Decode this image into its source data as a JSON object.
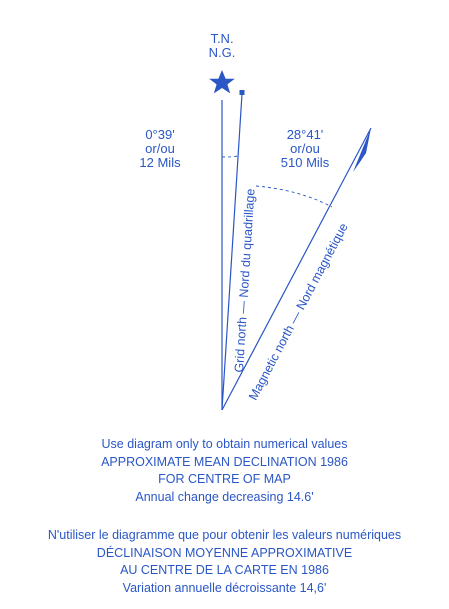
{
  "north_marker": {
    "line1": "T.N.",
    "line2": "N.G."
  },
  "angle_grid": {
    "deg": "0°39'",
    "oru": "or/ou",
    "mils": "12 Mils"
  },
  "angle_magnetic": {
    "deg": "28°41'",
    "oru": "or/ou",
    "mils": "510 Mils"
  },
  "grid_north_label": "Grid north — Nord du quadrillage",
  "magnetic_north_label": "Magnetic north — Nord magnétique",
  "english": {
    "line1": "Use diagram only to obtain numerical values",
    "line2": "APPROXIMATE MEAN DECLINATION 1986",
    "line3": "FOR CENTRE OF MAP",
    "line4": "Annual change decreasing 14.6'"
  },
  "french": {
    "line1": "N'utiliser le diagramme que pour obtenir les valeurs numériques",
    "line2": "DÉCLINAISON MOYENNE APPROXIMATIVE",
    "line3": "AU CENTRE DE LA CARTE EN 1986",
    "line4": "Variation annuelle décroissante 14,6'"
  },
  "colors": {
    "ink": "#2a56c6"
  }
}
